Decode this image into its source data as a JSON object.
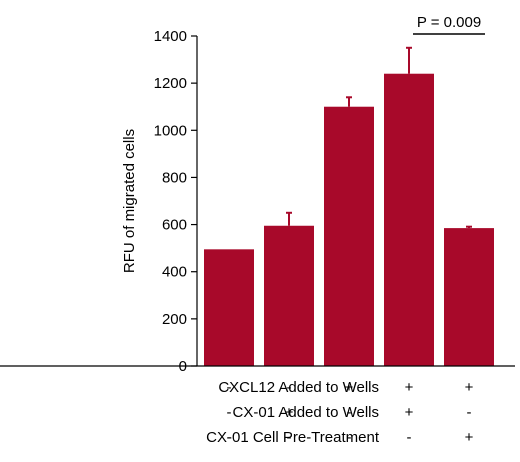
{
  "chart_data": {
    "type": "bar",
    "ylabel": "RFU of migrated cells",
    "ylim": [
      0,
      1400
    ],
    "yticks": [
      0,
      200,
      400,
      600,
      800,
      1000,
      1200,
      1400
    ],
    "values": [
      495,
      595,
      1100,
      1240,
      585
    ],
    "errors": [
      0,
      55,
      40,
      110,
      6
    ],
    "bar_color": "#a8092a",
    "annotation": {
      "text": "P = 0.009",
      "from_bar": 3,
      "to_bar": 4
    },
    "conditions": [
      {
        "label": "CXCL12 Added to Wells",
        "signs": [
          "-",
          "-",
          "+",
          "+",
          "+"
        ]
      },
      {
        "label": "CX-01 Added to Wells",
        "signs": [
          "-",
          "+",
          "-",
          "+",
          "-"
        ]
      },
      {
        "label": "CX-01 Cell Pre-Treatment",
        "signs": [
          "-",
          "-",
          "-",
          "-",
          "+"
        ]
      }
    ]
  }
}
